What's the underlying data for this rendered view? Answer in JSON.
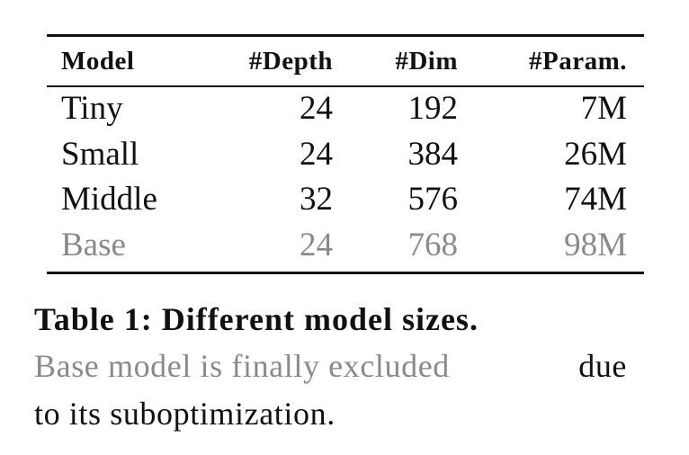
{
  "table": {
    "header": [
      "Model",
      "#Depth",
      "#Dim",
      "#Param."
    ],
    "rows": [
      [
        "Tiny",
        "24",
        "192",
        "7M"
      ],
      [
        "Small",
        "24",
        "384",
        "26M"
      ],
      [
        "Middle",
        "32",
        "576",
        "74M"
      ],
      [
        "Base",
        "24",
        "768",
        "98M"
      ]
    ]
  },
  "caption": {
    "label": "Table 1:",
    "title": "Different model sizes.",
    "muted": "Base model is finally excluded",
    "line2_end": "due",
    "line3": "to its suboptimization."
  }
}
